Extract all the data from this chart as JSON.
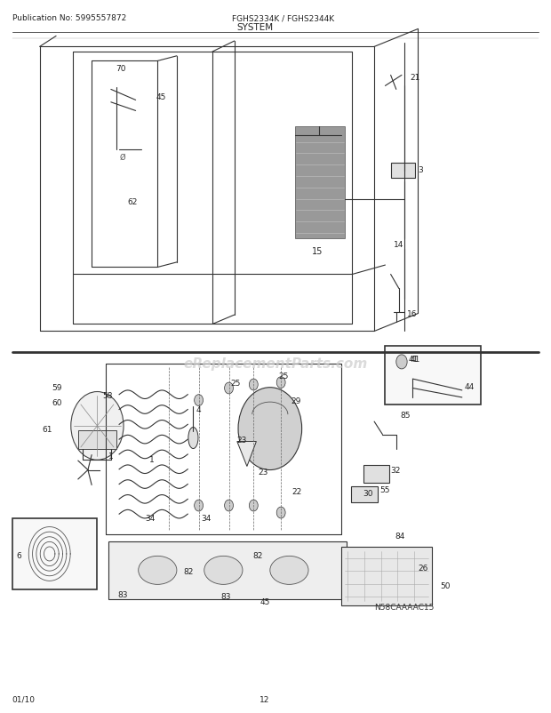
{
  "pub_no": "Publication No: 5995557872",
  "model": "FGHS2334K / FGHS2344K",
  "section": "SYSTEM",
  "date": "01/10",
  "page": "12",
  "watermark": "eReplacementParts.com",
  "diagram_code": "N58CAAAAC15",
  "bg_color": "#ffffff",
  "line_color": "#333333",
  "text_color": "#222222"
}
